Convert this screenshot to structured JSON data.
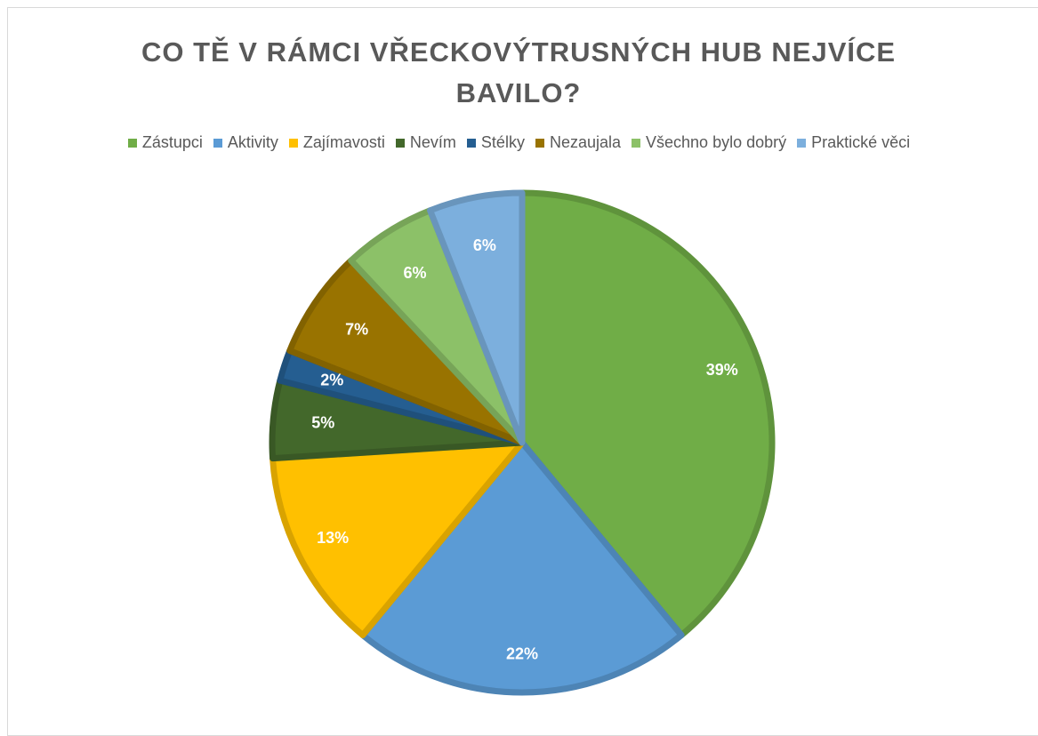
{
  "chart_data": {
    "type": "pie",
    "title": "CO TĚ V RÁMCI VŘECKOVÝTRUSNÝCH HUB NEJVÍCE BAVILO?",
    "categories": [
      "Zástupci",
      "Aktivity",
      "Zajímavosti",
      "Nevím",
      "Stélky",
      "Nezaujala",
      "Všechno bylo dobrý",
      "Praktické věci"
    ],
    "values": [
      39,
      22,
      13,
      5,
      2,
      7,
      6,
      6
    ],
    "value_labels": [
      "39%",
      "22%",
      "13%",
      "5%",
      "2%",
      "7%",
      "6%",
      "6%"
    ],
    "colors": [
      "#70ad47",
      "#5b9bd5",
      "#ffc000",
      "#43682b",
      "#255e91",
      "#997300",
      "#8cc168",
      "#7cafdd"
    ],
    "legend": "top"
  }
}
